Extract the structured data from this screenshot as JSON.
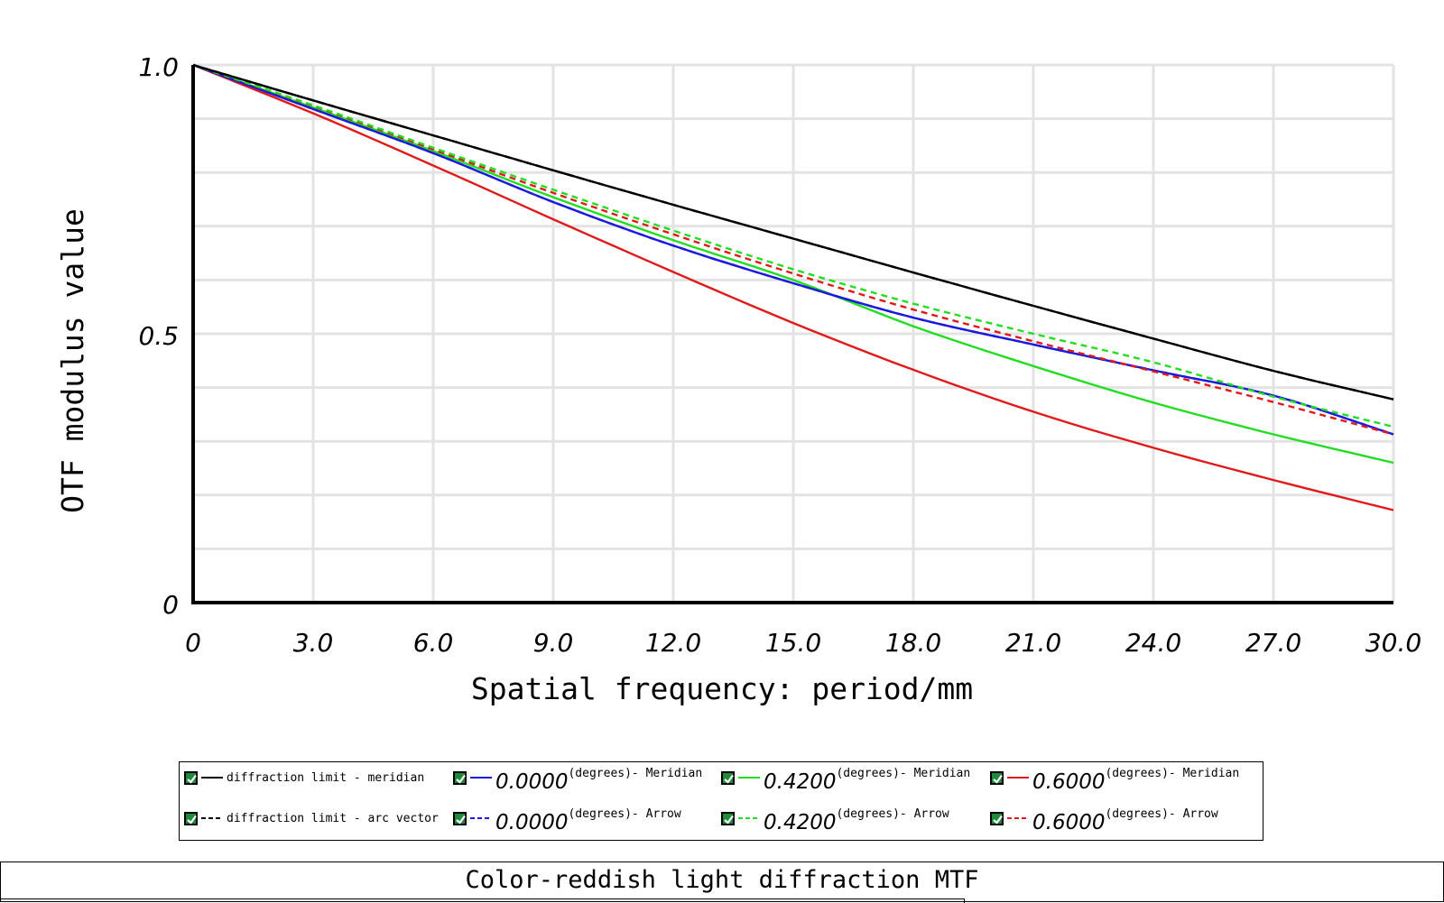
{
  "chart_data": {
    "type": "line",
    "title": "Color-reddish light diffraction MTF",
    "xlabel": "Spatial frequency: period/mm",
    "ylabel": "OTF modulus value",
    "xlim": [
      0,
      30
    ],
    "ylim": [
      0,
      1
    ],
    "x_ticks": [
      "0",
      "3.0",
      "6.0",
      "9.0",
      "12.0",
      "15.0",
      "18.0",
      "21.0",
      "24.0",
      "27.0",
      "30.0"
    ],
    "y_ticks": [
      "0",
      "0.5",
      "1.0"
    ],
    "grid": true,
    "legend_position": "bottom",
    "x": [
      0,
      3,
      6,
      9,
      12,
      15,
      18,
      21,
      24,
      27,
      30
    ],
    "series": [
      {
        "name": "diffraction limit - meridian",
        "color": "#000000",
        "dash": "solid",
        "values": [
          1.0,
          0.934,
          0.869,
          0.804,
          0.74,
          0.677,
          0.614,
          0.552,
          0.491,
          0.431,
          0.378
        ]
      },
      {
        "name": "diffraction limit - arc vector",
        "color": "#000000",
        "dash": "dashed",
        "values": [
          1.0,
          0.934,
          0.869,
          0.804,
          0.74,
          0.677,
          0.614,
          0.552,
          0.491,
          0.431,
          0.378
        ]
      },
      {
        "name": "(degrees)- Meridian",
        "value": "0.0000",
        "color": "#1a1adc",
        "dash": "solid",
        "values": [
          1.0,
          0.918,
          0.836,
          0.745,
          0.664,
          0.594,
          0.53,
          0.48,
          0.432,
          0.385,
          0.313
        ]
      },
      {
        "name": "(degrees)- Arrow",
        "value": "0.0000",
        "color": "#1a1adc",
        "dash": "dashed",
        "values": [
          1.0,
          0.918,
          0.836,
          0.745,
          0.664,
          0.594,
          0.53,
          0.48,
          0.432,
          0.385,
          0.313
        ]
      },
      {
        "name": "(degrees)- Meridian",
        "value": "0.4200",
        "color": "#22dd22",
        "dash": "solid",
        "values": [
          1.0,
          0.921,
          0.84,
          0.754,
          0.674,
          0.6,
          0.514,
          0.44,
          0.372,
          0.313,
          0.26
        ]
      },
      {
        "name": "(degrees)- Arrow",
        "value": "0.4200",
        "color": "#22dd22",
        "dash": "dashed",
        "values": [
          1.0,
          0.925,
          0.846,
          0.768,
          0.692,
          0.62,
          0.556,
          0.5,
          0.447,
          0.383,
          0.327
        ]
      },
      {
        "name": "(degrees)- Meridian",
        "value": "0.6000",
        "color": "#e01a1a",
        "dash": "solid",
        "values": [
          1.0,
          0.91,
          0.813,
          0.713,
          0.615,
          0.52,
          0.433,
          0.355,
          0.288,
          0.228,
          0.172
        ]
      },
      {
        "name": "(degrees)- Arrow",
        "value": "0.6000",
        "color": "#e01a1a",
        "dash": "dashed",
        "values": [
          1.0,
          0.924,
          0.843,
          0.762,
          0.685,
          0.612,
          0.545,
          0.486,
          0.43,
          0.373,
          0.313
        ]
      }
    ]
  }
}
